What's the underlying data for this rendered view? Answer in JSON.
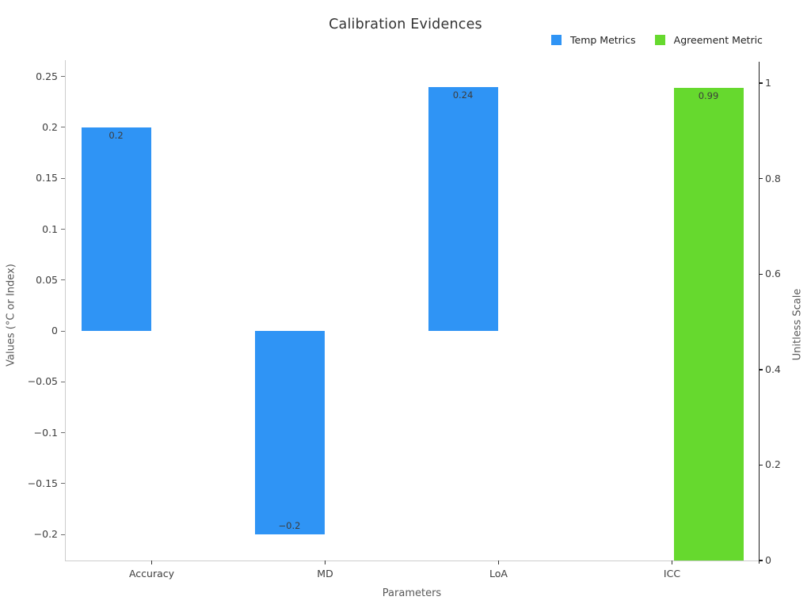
{
  "title": "Calibration Evidences",
  "legend": {
    "position": "top-right",
    "items": [
      {
        "label": "Temp Metrics",
        "color": "#2F94F5"
      },
      {
        "label": "Agreement Metric",
        "color": "#66D92E"
      }
    ]
  },
  "axes": {
    "x": {
      "label": "Parameters",
      "categories": [
        "Accuracy",
        "MD",
        "LoA",
        "ICC"
      ]
    },
    "y_left": {
      "label": "Values (°C or Index)",
      "min": -0.2255,
      "max": 0.2645,
      "ticks": [
        {
          "v": 0.25,
          "label": "0.25"
        },
        {
          "v": 0.2,
          "label": "0.2"
        },
        {
          "v": 0.15,
          "label": "0.15"
        },
        {
          "v": 0.1,
          "label": "0.1"
        },
        {
          "v": 0.05,
          "label": "0.05"
        },
        {
          "v": 0,
          "label": "0"
        },
        {
          "v": -0.05,
          "label": "−0.05"
        },
        {
          "v": -0.1,
          "label": "−0.1"
        },
        {
          "v": -0.15,
          "label": "−0.15"
        },
        {
          "v": -0.2,
          "label": "−0.2"
        }
      ]
    },
    "y_right": {
      "label": "Unitless Scale",
      "min": 0,
      "max": 1.045,
      "ticks": [
        {
          "v": 1,
          "label": "1"
        },
        {
          "v": 0.8,
          "label": "0.8"
        },
        {
          "v": 0.6,
          "label": "0.6"
        },
        {
          "v": 0.4,
          "label": "0.4"
        },
        {
          "v": 0.2,
          "label": "0.2"
        },
        {
          "v": 0,
          "label": "0"
        }
      ]
    }
  },
  "chart_data": {
    "type": "bar",
    "title": "Calibration Evidences",
    "xlabel": "Parameters",
    "ylabel_left": "Values (°C or Index)",
    "ylabel_right": "Unitless Scale",
    "grid": false,
    "legend_position": "top-right",
    "categories": [
      "Accuracy",
      "MD",
      "LoA",
      "ICC"
    ],
    "ylim_left": [
      -0.2255,
      0.2645
    ],
    "ylim_right": [
      0,
      1.045
    ],
    "series": [
      {
        "name": "Temp Metrics",
        "axis": "left",
        "color": "#2F94F5",
        "values": [
          0.2,
          -0.2,
          0.24,
          null
        ],
        "value_labels": [
          "0.2",
          "−0.2",
          "0.24",
          null
        ]
      },
      {
        "name": "Agreement Metric",
        "axis": "right",
        "color": "#66D92E",
        "values": [
          null,
          null,
          null,
          0.99
        ],
        "value_labels": [
          null,
          null,
          null,
          "0.99"
        ]
      }
    ]
  }
}
